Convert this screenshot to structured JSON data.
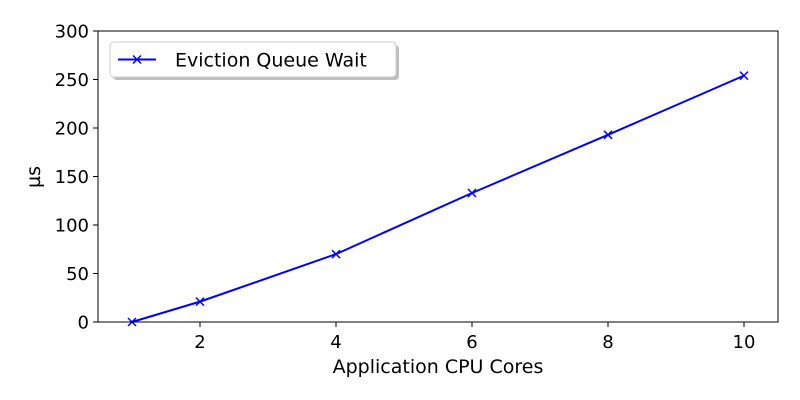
{
  "chart_data": {
    "type": "line",
    "title": "",
    "xlabel": "Application CPU Cores",
    "ylabel": "µs",
    "xlim": [
      0.5,
      10.5
    ],
    "ylim": [
      0,
      300
    ],
    "xticks": [
      2,
      4,
      6,
      8,
      10
    ],
    "yticks": [
      0,
      50,
      100,
      150,
      200,
      250,
      300
    ],
    "grid": false,
    "legend_position": "upper-left",
    "series": [
      {
        "name": "Eviction Queue Wait",
        "color": "#0000ff",
        "marker": "x",
        "x": [
          1,
          2,
          4,
          6,
          8,
          10
        ],
        "y": [
          0,
          21,
          70,
          133,
          193,
          254
        ]
      }
    ]
  }
}
